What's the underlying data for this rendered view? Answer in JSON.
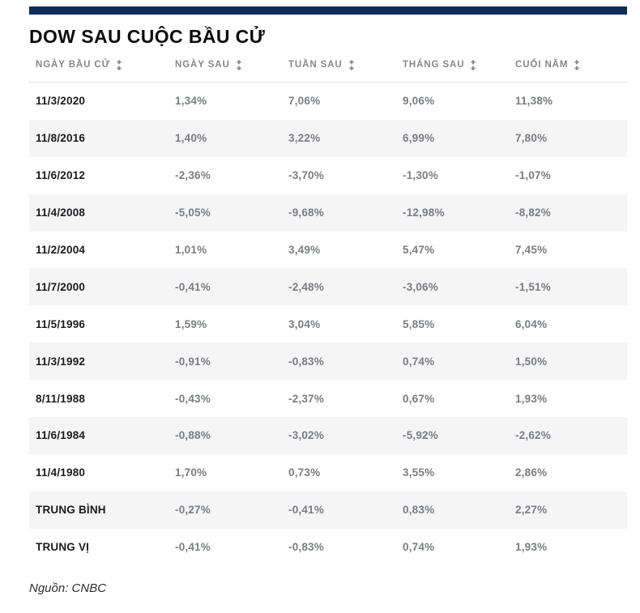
{
  "page": {
    "title": "DOW SAU CUỘC BẦU CỬ",
    "source": "Nguồn: CNBC"
  },
  "colors": {
    "accent_bar": "#0d2c58",
    "row_stripe": "#f5f5f6",
    "header_text": "#85878b",
    "value_text": "#7b7d81",
    "date_text": "#1b1b1d"
  },
  "icons": {
    "sort": "sort-up-down-arrows"
  },
  "table": {
    "columns": [
      "NGÀY BẦU CỬ",
      "NGÀY SAU",
      "TUẦN SAU",
      "THÁNG SAU",
      "CUỐI NĂM"
    ],
    "rows": [
      {
        "date": "11/3/2020",
        "values": [
          "1,34%",
          "7,06%",
          "9,06%",
          "11,38%"
        ]
      },
      {
        "date": "11/8/2016",
        "values": [
          "1,40%",
          "3,22%",
          "6,99%",
          "7,80%"
        ]
      },
      {
        "date": "11/6/2012",
        "values": [
          "-2,36%",
          "-3,70%",
          "-1,30%",
          "-1,07%"
        ]
      },
      {
        "date": "11/4/2008",
        "values": [
          "-5,05%",
          "-9,68%",
          "-12,98%",
          "-8,82%"
        ]
      },
      {
        "date": "11/2/2004",
        "values": [
          "1,01%",
          "3,49%",
          "5,47%",
          "7,45%"
        ]
      },
      {
        "date": "11/7/2000",
        "values": [
          "-0,41%",
          "-2,48%",
          "-3,06%",
          "-1,51%"
        ]
      },
      {
        "date": "11/5/1996",
        "values": [
          "1,59%",
          "3,04%",
          "5,85%",
          "6,04%"
        ]
      },
      {
        "date": "11/3/1992",
        "values": [
          "-0,91%",
          "-0,83%",
          "0,74%",
          "1,50%"
        ]
      },
      {
        "date": "8/11/1988",
        "values": [
          "-0,43%",
          "-2,37%",
          "0,67%",
          "1,93%"
        ]
      },
      {
        "date": "11/6/1984",
        "values": [
          "-0,88%",
          "-3,02%",
          "-5,92%",
          "-2,62%"
        ]
      },
      {
        "date": "11/4/1980",
        "values": [
          "1,70%",
          "0,73%",
          "3,55%",
          "2,86%"
        ]
      },
      {
        "date": "TRUNG BÌNH",
        "values": [
          "-0,27%",
          "-0,41%",
          "0,83%",
          "2,27%"
        ]
      },
      {
        "date": "TRUNG VỊ",
        "values": [
          "-0,41%",
          "-0,83%",
          "0,74%",
          "1,93%"
        ]
      }
    ]
  },
  "chart_data": {
    "type": "table",
    "title": "DOW SAU CUỘC BẦU CỬ",
    "columns": [
      "NGÀY BẦU CỬ",
      "NGÀY SAU",
      "TUẦN SAU",
      "THÁNG SAU",
      "CUỐI NĂM"
    ],
    "rows": [
      [
        "11/3/2020",
        "1,34%",
        "7,06%",
        "9,06%",
        "11,38%"
      ],
      [
        "11/8/2016",
        "1,40%",
        "3,22%",
        "6,99%",
        "7,80%"
      ],
      [
        "11/6/2012",
        "-2,36%",
        "-3,70%",
        "-1,30%",
        "-1,07%"
      ],
      [
        "11/4/2008",
        "-5,05%",
        "-9,68%",
        "-12,98%",
        "-8,82%"
      ],
      [
        "11/2/2004",
        "1,01%",
        "3,49%",
        "5,47%",
        "7,45%"
      ],
      [
        "11/7/2000",
        "-0,41%",
        "-2,48%",
        "-3,06%",
        "-1,51%"
      ],
      [
        "11/5/1996",
        "1,59%",
        "3,04%",
        "5,85%",
        "6,04%"
      ],
      [
        "11/3/1992",
        "-0,91%",
        "-0,83%",
        "0,74%",
        "1,50%"
      ],
      [
        "8/11/1988",
        "-0,43%",
        "-2,37%",
        "0,67%",
        "1,93%"
      ],
      [
        "11/6/1984",
        "-0,88%",
        "-3,02%",
        "-5,92%",
        "-2,62%"
      ],
      [
        "11/4/1980",
        "1,70%",
        "0,73%",
        "3,55%",
        "2,86%"
      ],
      [
        "TRUNG BÌNH",
        "-0,27%",
        "-0,41%",
        "0,83%",
        "2,27%"
      ],
      [
        "TRUNG VỊ",
        "-0,41%",
        "-0,83%",
        "0,74%",
        "1,93%"
      ]
    ],
    "source": "Nguồn: CNBC"
  }
}
